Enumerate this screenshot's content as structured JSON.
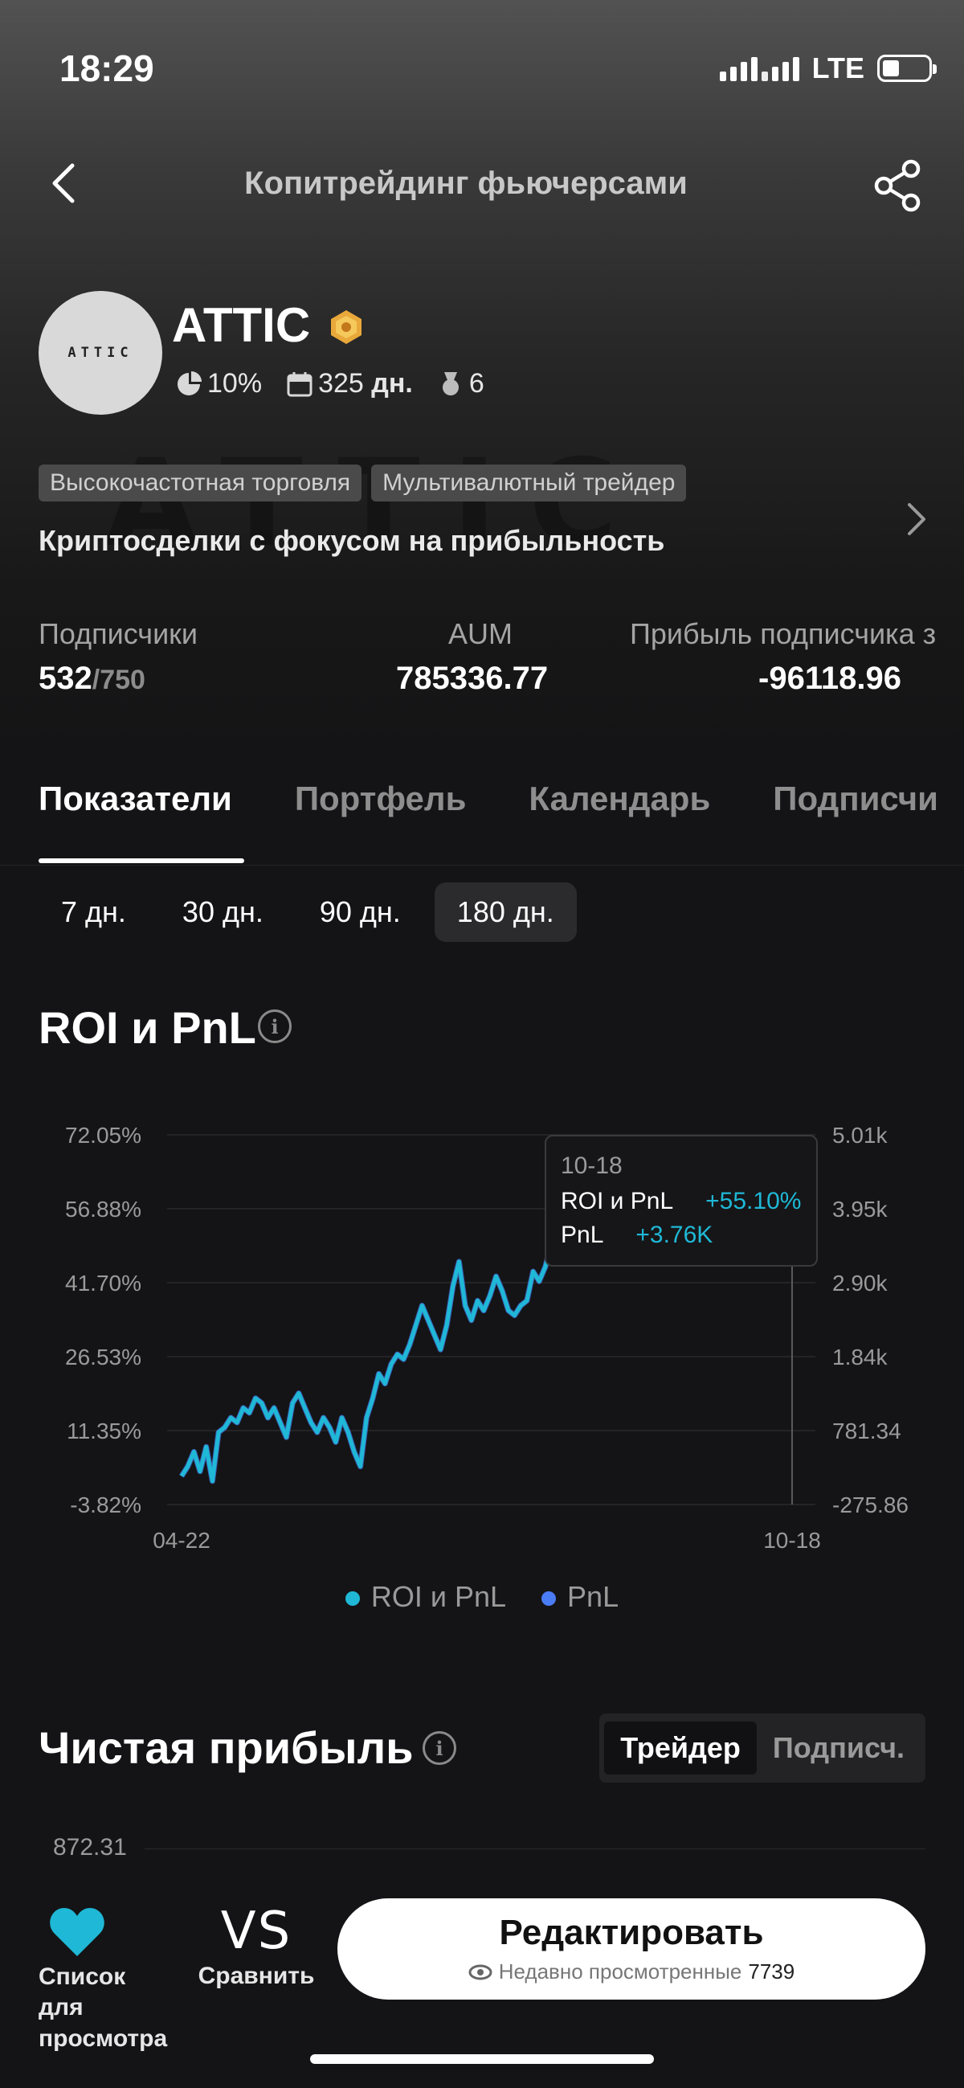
{
  "status_bar": {
    "time": "18:29",
    "network": "LTE"
  },
  "nav": {
    "title": "Копитрейдинг фьючерсами"
  },
  "watermark": "ATTIC",
  "profile": {
    "avatar_text": "ATTIC",
    "name": "ATTIC",
    "profit_share": "10%",
    "days_value": "325",
    "days_unit": "дн.",
    "rank": "6",
    "tags": [
      "Высокочастотная торговля",
      "Мультивалютный трейдер"
    ],
    "description": "Криптосделки с фокусом на прибыльность"
  },
  "metrics": {
    "subscribers_label": "Подписчики",
    "subscribers_value": "532",
    "subscribers_max": "/750",
    "aum_label": "AUM",
    "aum_value": "785336.77",
    "profit_label": "Прибыль подписчика з",
    "profit_value": "-96118.96"
  },
  "tabs": [
    "Показатели",
    "Портфель",
    "Календарь",
    "Подписчи"
  ],
  "periods": [
    "7 дн.",
    "30 дн.",
    "90 дн.",
    "180 дн."
  ],
  "roi_section": {
    "title": "ROI и PnL"
  },
  "tooltip": {
    "date": "10-18",
    "roi_label": "ROI и PnL",
    "roi_value": "+55.10%",
    "pnl_label": "PnL",
    "pnl_value": "+3.76K"
  },
  "legend": {
    "roi": "ROI и PnL",
    "pnl": "PnL"
  },
  "chart_data": {
    "type": "line",
    "x_range_labels": [
      "04-22",
      "10-18"
    ],
    "y_left_ticks": [
      "72.05%",
      "56.88%",
      "41.70%",
      "26.53%",
      "11.35%",
      "-3.82%"
    ],
    "y_right_ticks": [
      "5.01k",
      "3.95k",
      "2.90k",
      "1.84k",
      "781.34",
      "-275.86"
    ],
    "y_left_lim": [
      -3.82,
      72.05
    ],
    "colors": {
      "roi": "#1fb8d6",
      "pnl": "#4a7cf5"
    },
    "series": [
      {
        "name": "ROI и PnL",
        "values": [
          2,
          4,
          7,
          3,
          8,
          1,
          11,
          12,
          14,
          13,
          16,
          15,
          18,
          17,
          14,
          16,
          13,
          10,
          17,
          19,
          16,
          13,
          11,
          14,
          12,
          9,
          14,
          11,
          7,
          4,
          14,
          18,
          23,
          21,
          25,
          27,
          26,
          29,
          33,
          37,
          34,
          31,
          28,
          33,
          41,
          46,
          37,
          34,
          38,
          36,
          39,
          43,
          40,
          36,
          35,
          37,
          38,
          44,
          42,
          45,
          50,
          52,
          48,
          52,
          46,
          48,
          50,
          53,
          55.1
        ]
      }
    ]
  },
  "net_profit": {
    "title": "Чистая прибыль",
    "segments": [
      "Трейдер",
      "Подписч."
    ],
    "axis_top": "872.31"
  },
  "bottom_bar": {
    "watchlist_label": "Список для просмотра",
    "vs_text": "VS",
    "compare_label": "Сравнить",
    "edit_label": "Редактировать",
    "recent_label": "Недавно просмотренные",
    "recent_count": "7739"
  }
}
